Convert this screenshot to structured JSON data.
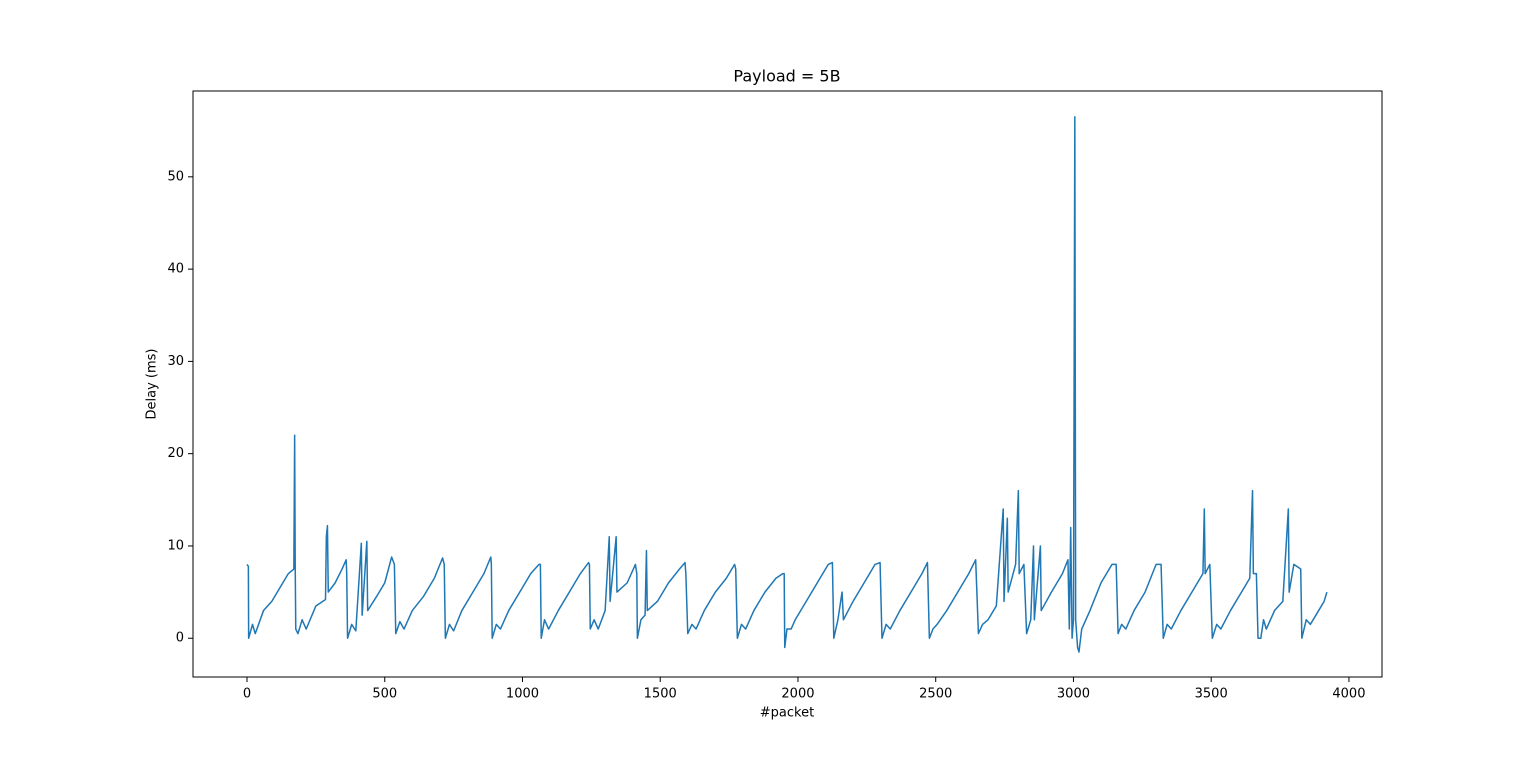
{
  "chart_data": {
    "type": "line",
    "title": "Payload = 5B",
    "x_label": "#packet",
    "y_label": "Delay (ms)",
    "x": [
      0,
      5,
      6,
      20,
      30,
      60,
      90,
      120,
      150,
      170,
      173,
      175,
      177,
      185,
      200,
      215,
      250,
      285,
      288,
      292,
      295,
      320,
      345,
      360,
      362,
      365,
      380,
      395,
      415,
      418,
      435,
      438,
      470,
      500,
      525,
      535,
      540,
      555,
      570,
      600,
      640,
      680,
      710,
      716,
      720,
      735,
      750,
      780,
      820,
      860,
      885,
      887,
      890,
      905,
      920,
      950,
      990,
      1030,
      1060,
      1065,
      1068,
      1080,
      1095,
      1130,
      1170,
      1210,
      1240,
      1243,
      1246,
      1260,
      1275,
      1300,
      1315,
      1318,
      1340,
      1343,
      1380,
      1410,
      1415,
      1417,
      1430,
      1445,
      1450,
      1453,
      1490,
      1530,
      1570,
      1590,
      1593,
      1600,
      1615,
      1630,
      1660,
      1700,
      1740,
      1770,
      1774,
      1780,
      1795,
      1810,
      1840,
      1880,
      1920,
      1945,
      1950,
      1952,
      1960,
      1975,
      1990,
      2030,
      2070,
      2110,
      2125,
      2130,
      2145,
      2160,
      2165,
      2200,
      2240,
      2280,
      2298,
      2305,
      2320,
      2335,
      2370,
      2410,
      2450,
      2470,
      2477,
      2490,
      2505,
      2540,
      2580,
      2620,
      2645,
      2655,
      2670,
      2690,
      2720,
      2745,
      2748,
      2760,
      2763,
      2790,
      2800,
      2803,
      2820,
      2830,
      2845,
      2855,
      2858,
      2880,
      2883,
      2920,
      2960,
      2980,
      2985,
      2990,
      2995,
      3000,
      3005,
      3008,
      3015,
      3020,
      3030,
      3060,
      3100,
      3140,
      3155,
      3162,
      3175,
      3190,
      3220,
      3260,
      3300,
      3318,
      3326,
      3340,
      3355,
      3390,
      3430,
      3470,
      3475,
      3478,
      3495,
      3504,
      3520,
      3535,
      3570,
      3610,
      3640,
      3650,
      3653,
      3664,
      3670,
      3680,
      3690,
      3700,
      3730,
      3760,
      3780,
      3783,
      3800,
      3825,
      3829,
      3845,
      3860,
      3890,
      3910,
      3920
    ],
    "series": [
      {
        "name": "delay",
        "color": "#1f77b4",
        "values": [
          8,
          7.8,
          0,
          1.5,
          0.5,
          3,
          4,
          5.5,
          7,
          7.5,
          22,
          8,
          1,
          0.5,
          2,
          1,
          3.5,
          4.2,
          11,
          12.2,
          5,
          6,
          7.5,
          8.5,
          7,
          0,
          1.5,
          0.8,
          10.3,
          2.5,
          10.5,
          3,
          4.5,
          6,
          8.8,
          8,
          0.5,
          1.8,
          1,
          3,
          4.5,
          6.5,
          8.7,
          8,
          0,
          1.5,
          0.8,
          3,
          5,
          7,
          8.8,
          8,
          0,
          1.5,
          1,
          3,
          5,
          7,
          8,
          8,
          0,
          2,
          1,
          3,
          5,
          7,
          8.2,
          8,
          1,
          2,
          1,
          3,
          11,
          4,
          11,
          5,
          6,
          8,
          7,
          0,
          2,
          2.5,
          9.5,
          3,
          4,
          6,
          7.5,
          8.2,
          7,
          0.5,
          1.5,
          1,
          3,
          5,
          6.5,
          8,
          7.5,
          0,
          1.5,
          1,
          3,
          5,
          6.5,
          7,
          7,
          -1,
          1,
          1,
          2,
          4,
          6,
          8,
          8.2,
          0,
          2,
          5,
          2,
          4,
          6,
          8,
          8.2,
          0,
          1.5,
          1,
          3,
          5,
          7,
          8.2,
          0,
          1,
          1.5,
          3,
          5,
          7,
          8.5,
          0.5,
          1.5,
          2,
          3.5,
          14,
          4,
          13,
          5,
          8,
          16,
          7,
          8,
          0.5,
          2,
          10,
          2,
          10,
          3,
          5,
          7,
          8.5,
          1,
          12,
          0,
          2,
          56.5,
          2,
          -1,
          -1.5,
          1,
          3,
          6,
          8,
          8,
          0.5,
          1.5,
          1,
          3,
          5,
          8,
          8,
          0,
          1.5,
          1,
          3,
          5,
          7,
          14,
          7,
          8,
          0,
          1.5,
          1,
          3,
          5,
          6.5,
          16,
          7,
          7,
          0,
          0,
          2,
          1,
          3,
          4,
          14,
          5,
          8,
          7.5,
          0,
          2,
          1.5,
          3,
          4,
          5
        ]
      }
    ],
    "xlim": [
      -196,
      4120
    ],
    "ylim": [
      -4.2,
      59.3
    ],
    "xticks": [
      0,
      500,
      1000,
      1500,
      2000,
      2500,
      3000,
      3500,
      4000
    ],
    "yticks": [
      0,
      10,
      20,
      30,
      40,
      50
    ],
    "grid": false
  }
}
